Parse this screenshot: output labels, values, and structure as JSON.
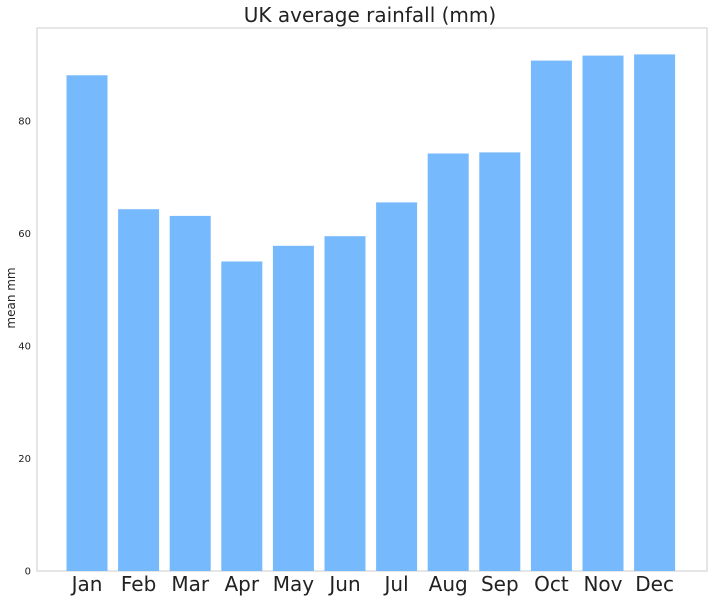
{
  "chart_data": {
    "type": "bar",
    "title": "UK average rainfall (mm)",
    "xlabel": "",
    "ylabel": "mean mm",
    "categories": [
      "Jan",
      "Feb",
      "Mar",
      "Apr",
      "May",
      "Jun",
      "Jul",
      "Aug",
      "Sep",
      "Oct",
      "Nov",
      "Dec"
    ],
    "values": [
      88.1,
      64.3,
      63.1,
      55.0,
      57.8,
      59.5,
      65.5,
      74.2,
      74.4,
      90.7,
      91.6,
      91.8
    ],
    "yticks": [
      "0",
      "20",
      "40",
      "60",
      "80"
    ],
    "ylim": [
      0,
      96.5
    ],
    "bar_color": "#76B9FC",
    "grid": false
  }
}
